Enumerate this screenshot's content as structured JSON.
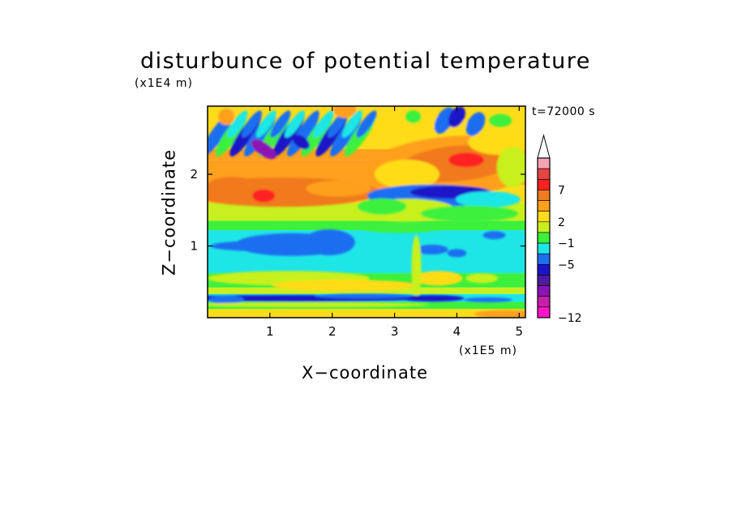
{
  "chart_data": {
    "type": "heatmap",
    "title": "disturbunce of potential temperature",
    "time_label": "t=72000 s",
    "xlabel": "X−coordinate",
    "ylabel": "Z−coordinate",
    "x_unit": "(x1E5 m)",
    "y_unit": "(x1E4 m)",
    "xlim": [
      0,
      5.1
    ],
    "ylim": [
      0,
      2.95
    ],
    "x_ticks": [
      1,
      2,
      3,
      4,
      5
    ],
    "y_ticks": [
      1,
      2
    ],
    "x_tick_labels": [
      "1",
      "2",
      "3",
      "4",
      "5"
    ],
    "y_tick_labels": [
      "1",
      "2"
    ],
    "colorbar": {
      "labels": [
        "7",
        "2",
        "−1",
        "−5",
        "−12"
      ],
      "colors_top_to_bottom": [
        "#ffffff",
        "#f5a3b3",
        "#e64545",
        "#ff2020",
        "#f07a1e",
        "#ffa01e",
        "#ffdc19",
        "#c8f01e",
        "#3cf03c",
        "#1ee6e6",
        "#1e6ef0",
        "#1a14c8",
        "#501aa0",
        "#8c14b4",
        "#c81eaa",
        "#ff14c8"
      ]
    },
    "bands": [
      {
        "z_range": [
          2.2,
          2.95
        ],
        "dominant": "mixed warm/cold waves",
        "x_range": [
          0,
          2.5
        ]
      },
      {
        "z_range": [
          1.6,
          2.4
        ],
        "dominant": "orange/red warm anomaly",
        "x_range": [
          2.5,
          5.1
        ]
      },
      {
        "z_range": [
          1.4,
          2.0
        ],
        "dominant": "orange/yellow",
        "x_range": [
          0,
          2.5
        ]
      },
      {
        "z_range": [
          0.7,
          1.25
        ],
        "dominant": "cyan with blue cold core",
        "x_range": [
          0,
          5.1
        ]
      },
      {
        "z_range": [
          0.3,
          0.7
        ],
        "dominant": "green/yellow",
        "x_range": [
          0,
          5.1
        ]
      },
      {
        "z_range": [
          0.0,
          0.35
        ],
        "dominant": "blue/cyan/yellow layered",
        "x_range": [
          0,
          5.1
        ]
      }
    ]
  }
}
